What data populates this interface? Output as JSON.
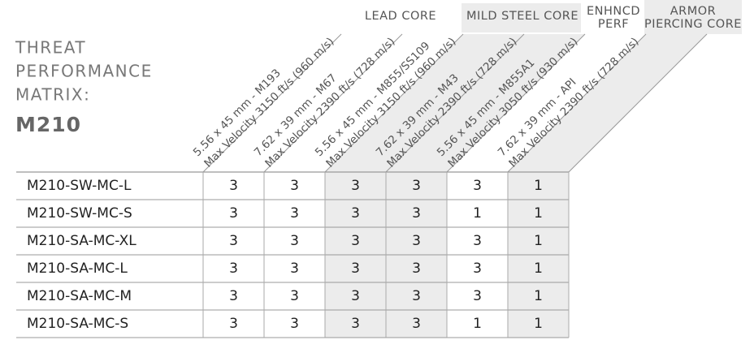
{
  "header": {
    "title": [
      "THREAT",
      "PERFORMANCE",
      "MATRIX:"
    ],
    "model": "M210"
  },
  "groups": [
    [
      "LEAD CORE"
    ],
    [
      "MILD STEEL CORE"
    ],
    [
      "ENHNCD",
      "PERF"
    ],
    [
      "ARMOR",
      "PIERCING CORE"
    ]
  ],
  "columns": [
    [
      "5.56 x 45 mm - M193",
      "Max Velocity 3150 ft/s (960 m/s)"
    ],
    [
      "7.62 x 39 mm - M67",
      "Max Velocity 2390 ft/s (728 m/s)"
    ],
    [
      "5.56 x 45 mm - M855/SS109",
      "Max Velocity 3150 ft/s (960 m/s)"
    ],
    [
      "7.62 x 39 mm - M43",
      "Max Velocity 2390 ft/s (728 m/s)"
    ],
    [
      "5.56 x 45 mm - M855A1",
      "Max Velocity 3050 ft/s (930 m/s)"
    ],
    [
      "7.62 x 39 mm - API",
      "Max Velocity 2390 ft/s (728 m/s)"
    ]
  ],
  "rows": [
    [
      "M210-SW-MC-L",
      3,
      3,
      3,
      3,
      3,
      1
    ],
    [
      "M210-SW-MC-S",
      3,
      3,
      3,
      3,
      1,
      1
    ],
    [
      "M210-SA-MC-XL",
      3,
      3,
      3,
      3,
      3,
      1
    ],
    [
      "M210-SA-MC-L",
      3,
      3,
      3,
      3,
      3,
      1
    ],
    [
      "M210-SA-MC-M",
      3,
      3,
      3,
      3,
      3,
      1
    ],
    [
      "M210-SA-MC-S",
      3,
      3,
      3,
      3,
      1,
      1
    ]
  ]
}
